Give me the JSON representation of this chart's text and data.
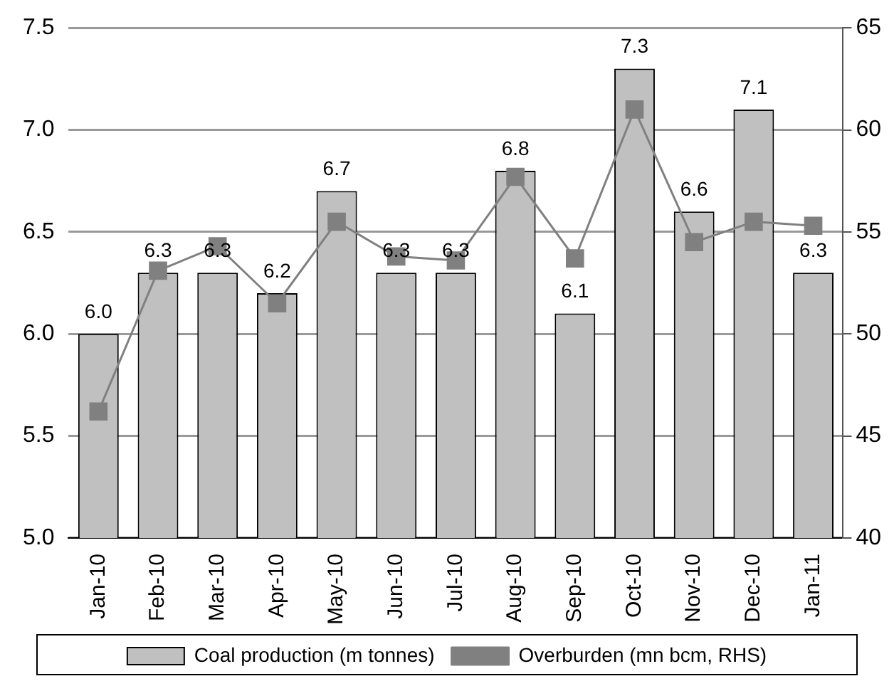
{
  "chart_data": {
    "type": "bar",
    "categories": [
      "Jan-10",
      "Feb-10",
      "Mar-10",
      "Apr-10",
      "May-10",
      "Jun-10",
      "Jul-10",
      "Aug-10",
      "Sep-10",
      "Oct-10",
      "Nov-10",
      "Dec-10",
      "Jan-11"
    ],
    "series": [
      {
        "name": "Coal production (m tonnes)",
        "color": "#c0c0c0",
        "values": [
          6.0,
          6.3,
          6.3,
          6.2,
          6.7,
          6.3,
          6.3,
          6.8,
          6.1,
          7.3,
          6.6,
          7.1,
          6.3
        ],
        "value_labels": [
          "6.0",
          "6.3",
          "6.3",
          "6.2",
          "6.7",
          "6.3",
          "6.3",
          "6.8",
          "6.1",
          "7.3",
          "6.6",
          "7.1",
          "6.3"
        ]
      },
      {
        "name": "Overburden (mn bcm, RHS)",
        "type": "line",
        "axis": "y2",
        "color": "#808080",
        "values": [
          46.2,
          53.1,
          54.3,
          51.5,
          55.5,
          53.8,
          53.6,
          57.7,
          53.7,
          61.0,
          54.5,
          55.5,
          55.3
        ]
      }
    ],
    "ylim": [
      5.0,
      7.5
    ],
    "yticks": [
      {
        "value": 5,
        "label": "5.0"
      },
      5.5,
      {
        "value": 6,
        "label": "6.0"
      },
      6.5,
      {
        "value": 7,
        "label": "7.0"
      },
      7.5
    ],
    "y2lim": [
      40,
      65
    ],
    "y2ticks": [
      40,
      45,
      50,
      55,
      60,
      65
    ],
    "grid": "y",
    "legend": "bottom",
    "marker": "square",
    "line_style": "solid"
  }
}
